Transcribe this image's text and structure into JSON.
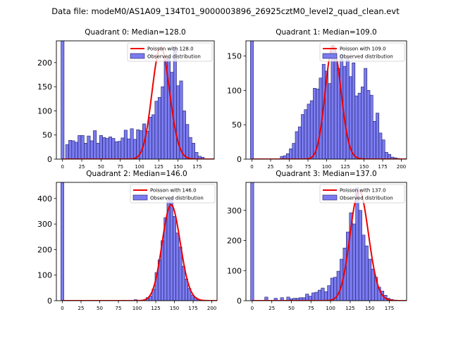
{
  "figure_title": "Data file: modeM0/AS1A09_134T01_9000003896_26925cztM0_level2_quad_clean.evt",
  "colors": {
    "bar_fill": "#7b7bf0",
    "bar_edge": "#1a1a66",
    "poisson": "#ee0000",
    "axis": "#000000"
  },
  "chart_data": [
    {
      "type": "bar",
      "title": "Quadrant 0: Median=128.0",
      "legend": {
        "placement": "top-right",
        "line_label": "Poisson with 128.0",
        "bar_label": "Observed distribution"
      },
      "xlim": [
        -8,
        197
      ],
      "ylim": [
        0,
        245
      ],
      "xticks": [
        0,
        25,
        50,
        75,
        100,
        125,
        150,
        175
      ],
      "yticks": [
        0,
        50,
        100,
        150,
        200
      ],
      "bin_width": 4,
      "zero_bin": {
        "x": 0,
        "value": 245
      },
      "bins_x": [
        6,
        10,
        14,
        18,
        22,
        26,
        30,
        34,
        38,
        42,
        46,
        50,
        54,
        58,
        62,
        66,
        70,
        74,
        78,
        82,
        86,
        90,
        94,
        98,
        102,
        106,
        110,
        114,
        118,
        122,
        126,
        130,
        134,
        138,
        142,
        146,
        150,
        154,
        158,
        162,
        166,
        170,
        174,
        178,
        182,
        186
      ],
      "values": [
        30,
        39,
        38,
        35,
        49,
        49,
        33,
        48,
        38,
        59,
        33,
        49,
        45,
        43,
        46,
        43,
        36,
        37,
        44,
        60,
        42,
        63,
        41,
        61,
        59,
        73,
        58,
        87,
        92,
        120,
        128,
        150,
        205,
        211,
        180,
        230,
        152,
        162,
        100,
        72,
        45,
        33,
        14,
        6,
        4,
        1
      ],
      "poisson_mean": 128,
      "poisson_peak": 232
    },
    {
      "type": "bar",
      "title": "Quadrant 1: Median=109.0",
      "legend": {
        "placement": "top-right",
        "line_label": "Poisson with 109.0",
        "bar_label": "Observed distribution"
      },
      "xlim": [
        -8,
        207
      ],
      "ylim": [
        0,
        172
      ],
      "xticks": [
        0,
        25,
        50,
        75,
        100,
        125,
        150,
        175,
        200
      ],
      "yticks": [
        0,
        50,
        100,
        150
      ],
      "bin_width": 4,
      "zero_bin": {
        "x": 0,
        "value": 172
      },
      "bins_x": [
        40,
        44,
        48,
        52,
        56,
        60,
        64,
        68,
        72,
        76,
        80,
        84,
        88,
        92,
        96,
        100,
        104,
        108,
        112,
        116,
        120,
        124,
        128,
        132,
        136,
        140,
        144,
        148,
        152,
        156,
        160,
        164,
        168,
        172,
        176,
        180,
        184,
        188,
        192,
        196
      ],
      "values": [
        4,
        5,
        8,
        15,
        23,
        40,
        47,
        65,
        72,
        80,
        85,
        103,
        102,
        118,
        138,
        128,
        110,
        165,
        145,
        132,
        152,
        135,
        148,
        120,
        140,
        92,
        96,
        105,
        132,
        100,
        93,
        55,
        67,
        38,
        28,
        10,
        7,
        3,
        2,
        1
      ],
      "poisson_mean": 109,
      "poisson_peak": 165
    },
    {
      "type": "bar",
      "title": "Quadrant 2: Median=146.0",
      "legend": {
        "placement": "top-right",
        "line_label": "Poisson with 146.0",
        "bar_label": "Observed distribution"
      },
      "xlim": [
        -8,
        207
      ],
      "ylim": [
        0,
        463
      ],
      "xticks": [
        0,
        25,
        50,
        75,
        100,
        125,
        150,
        175,
        200
      ],
      "yticks": [
        0,
        100,
        200,
        300,
        400
      ],
      "bin_width": 4,
      "zero_bin": {
        "x": 0,
        "value": 463
      },
      "bins_x": [
        38,
        70,
        82,
        98,
        114,
        118,
        122,
        126,
        130,
        134,
        138,
        142,
        146,
        150,
        154,
        158,
        162,
        166,
        170,
        174,
        178,
        182,
        186,
        190,
        194
      ],
      "values": [
        1,
        1,
        2,
        4,
        12,
        18,
        45,
        110,
        160,
        235,
        325,
        395,
        402,
        330,
        265,
        210,
        135,
        85,
        48,
        22,
        12,
        6,
        3,
        1,
        1
      ],
      "poisson_mean": 146,
      "poisson_peak": 375
    },
    {
      "type": "bar",
      "title": "Quadrant 3: Median=137.0",
      "legend": {
        "placement": "top-right",
        "line_label": "Poisson with 137.0",
        "bar_label": "Observed distribution"
      },
      "xlim": [
        -8,
        197
      ],
      "ylim": [
        0,
        393
      ],
      "xticks": [
        0,
        25,
        50,
        75,
        100,
        125,
        150,
        175
      ],
      "yticks": [
        0,
        100,
        200,
        300
      ],
      "bin_width": 4,
      "zero_bin": {
        "x": 0,
        "value": 393
      },
      "bins_x": [
        18,
        30,
        38,
        46,
        50,
        54,
        58,
        62,
        66,
        70,
        74,
        78,
        82,
        86,
        90,
        94,
        98,
        102,
        106,
        110,
        114,
        118,
        122,
        126,
        130,
        134,
        138,
        142,
        146,
        150,
        154,
        158,
        162,
        166,
        170,
        174,
        178,
        182
      ],
      "values": [
        12,
        8,
        10,
        12,
        6,
        8,
        8,
        10,
        10,
        22,
        15,
        26,
        28,
        35,
        42,
        30,
        50,
        75,
        78,
        98,
        138,
        175,
        228,
        292,
        255,
        375,
        300,
        218,
        182,
        138,
        105,
        78,
        45,
        32,
        18,
        8,
        4,
        2
      ],
      "poisson_mean": 137,
      "poisson_peak": 365
    }
  ]
}
